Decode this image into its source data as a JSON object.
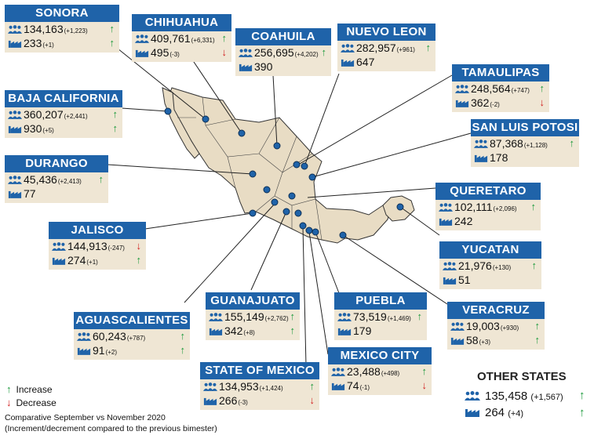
{
  "legend": {
    "increase": "Increase",
    "decrease": "Decrease"
  },
  "notes": {
    "line1": "Comparative September vs November 2020",
    "line2": "(Increment/decrement compared to the previous bimester)"
  },
  "other_states": {
    "title": "OTHER STATES",
    "workers": "135,458",
    "workers_delta": "(+1,567)",
    "companies": "264",
    "companies_delta": "(+4)",
    "workers_trend": "up",
    "companies_trend": "up"
  },
  "colors": {
    "header": "#1f63a9",
    "card": "#efe6d4",
    "map_fill": "#e8dcc4",
    "pin": "#1f63a9",
    "up": "#1b9a3b",
    "down": "#d21f1f"
  },
  "states": [
    {
      "id": "sonora",
      "name": "SONORA",
      "workers": "134,163",
      "workers_delta": "(+1,223)",
      "workers_trend": "up",
      "companies": "233",
      "companies_delta": "(+1)",
      "companies_trend": "up"
    },
    {
      "id": "chihuahua",
      "name": "CHIHUAHUA",
      "workers": "409,761",
      "workers_delta": "(+6,331)",
      "workers_trend": "up",
      "companies": "495",
      "companies_delta": "(-3)",
      "companies_trend": "down"
    },
    {
      "id": "coahuila",
      "name": "COAHUILA",
      "workers": "256,695",
      "workers_delta": "(+4,202)",
      "workers_trend": "up",
      "companies": "390",
      "companies_delta": "",
      "companies_trend": ""
    },
    {
      "id": "nuevo-leon",
      "name": "NUEVO LEON",
      "workers": "282,957",
      "workers_delta": "(+961)",
      "workers_trend": "up",
      "companies": "647",
      "companies_delta": "",
      "companies_trend": ""
    },
    {
      "id": "tamaulipas",
      "name": "TAMAULIPAS",
      "workers": "248,564",
      "workers_delta": "(+747)",
      "workers_trend": "up",
      "companies": "362",
      "companies_delta": "(-2)",
      "companies_trend": "down"
    },
    {
      "id": "baja-california",
      "name": "BAJA CALIFORNIA",
      "workers": "360,207",
      "workers_delta": "(+2,441)",
      "workers_trend": "up",
      "companies": "930",
      "companies_delta": "(+5)",
      "companies_trend": "up"
    },
    {
      "id": "san-luis-potosi",
      "name": "SAN LUIS POTOSI",
      "workers": "87,368",
      "workers_delta": "(+1,128)",
      "workers_trend": "up",
      "companies": "178",
      "companies_delta": "",
      "companies_trend": ""
    },
    {
      "id": "durango",
      "name": "DURANGO",
      "workers": "45,436",
      "workers_delta": "(+2,413)",
      "workers_trend": "up",
      "companies": "77",
      "companies_delta": "",
      "companies_trend": ""
    },
    {
      "id": "queretaro",
      "name": "QUERETARO",
      "workers": "102,111",
      "workers_delta": "(+2,096)",
      "workers_trend": "up",
      "companies": "242",
      "companies_delta": "",
      "companies_trend": ""
    },
    {
      "id": "jalisco",
      "name": "JALISCO",
      "workers": "144,913",
      "workers_delta": "(-247)",
      "workers_trend": "down",
      "companies": "274",
      "companies_delta": "(+1)",
      "companies_trend": "up"
    },
    {
      "id": "yucatan",
      "name": "YUCATAN",
      "workers": "21,976",
      "workers_delta": "(+130)",
      "workers_trend": "up",
      "companies": "51",
      "companies_delta": "",
      "companies_trend": ""
    },
    {
      "id": "veracruz",
      "name": "VERACRUZ",
      "workers": "19,003",
      "workers_delta": "(+930)",
      "workers_trend": "up",
      "companies": "58",
      "companies_delta": "(+3)",
      "companies_trend": "up"
    },
    {
      "id": "guanajuato",
      "name": "GUANAJUATO",
      "workers": "155,149",
      "workers_delta": "(+2,762)",
      "workers_trend": "up",
      "companies": "342",
      "companies_delta": "(+8)",
      "companies_trend": "up"
    },
    {
      "id": "puebla",
      "name": "PUEBLA",
      "workers": "73,519",
      "workers_delta": "(+1,469)",
      "workers_trend": "up",
      "companies": "179",
      "companies_delta": "",
      "companies_trend": ""
    },
    {
      "id": "aguascalientes",
      "name": "AGUASCALIENTES",
      "workers": "60,243",
      "workers_delta": "(+787)",
      "workers_trend": "up",
      "companies": "91",
      "companies_delta": "(+2)",
      "companies_trend": "up"
    },
    {
      "id": "mexico-city",
      "name": "MEXICO CITY",
      "workers": "23,488",
      "workers_delta": "(+498)",
      "workers_trend": "up",
      "companies": "74",
      "companies_delta": "(-1)",
      "companies_trend": "down"
    },
    {
      "id": "state-of-mexico",
      "name": "STATE OF MEXICO",
      "workers": "134,953",
      "workers_delta": "(+1,424)",
      "workers_trend": "up",
      "companies": "266",
      "companies_delta": "(-3)",
      "companies_trend": "down"
    }
  ]
}
